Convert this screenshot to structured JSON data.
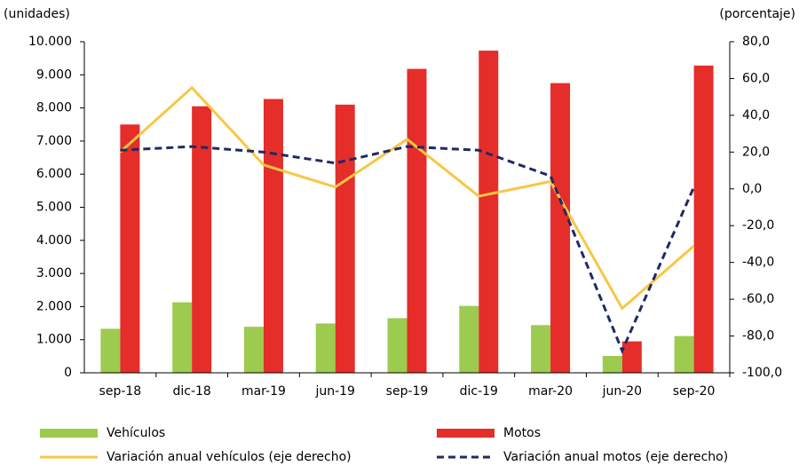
{
  "chart_data": {
    "type": "bar",
    "y_label": "(unidades)",
    "y2_label": "(porcentaje)",
    "categories": [
      "sep-18",
      "dic-18",
      "mar-19",
      "jun-19",
      "sep-19",
      "dic-19",
      "mar-20",
      "jun-20",
      "sep-20"
    ],
    "series": [
      {
        "name": "Vehículos",
        "type": "bar",
        "color": "#9dcb4f",
        "values": [
          1330,
          2130,
          1390,
          1490,
          1650,
          2020,
          1440,
          510,
          1110
        ]
      },
      {
        "name": "Motos",
        "type": "bar",
        "color": "#e52d2a",
        "values": [
          7500,
          8050,
          8270,
          8100,
          9180,
          9730,
          8750,
          950,
          9280
        ]
      },
      {
        "name": "Variación anual vehículos (eje derecho)",
        "type": "line",
        "axis": "y2",
        "color": "#f7c744",
        "dashed": false,
        "values": [
          20,
          55,
          13,
          1,
          27,
          -4,
          4,
          -65,
          -31
        ]
      },
      {
        "name": "Variación anual motos (eje derecho)",
        "type": "line",
        "axis": "y2",
        "color": "#1f2a66",
        "dashed": true,
        "values": [
          21,
          23,
          20,
          14,
          23,
          21,
          7,
          -88,
          1
        ]
      }
    ],
    "ylim": [
      0,
      10000
    ],
    "yticks": [
      0,
      {
        "value": 1000,
        "label": "1.000"
      },
      {
        "value": 2000,
        "label": "2.000"
      },
      {
        "value": 3000,
        "label": "3.000"
      },
      {
        "value": 4000,
        "label": "4.000"
      },
      {
        "value": 5000,
        "label": "5.000"
      },
      {
        "value": 6000,
        "label": "6.000"
      },
      {
        "value": 7000,
        "label": "7.000"
      },
      {
        "value": 8000,
        "label": "8.000"
      },
      {
        "value": 9000,
        "label": "9.000"
      },
      {
        "value": 10000,
        "label": "10.000"
      }
    ],
    "y2lim": [
      -100,
      80
    ],
    "y2ticks": [
      {
        "value": -100,
        "label": "-100,0"
      },
      {
        "value": -80,
        "label": "-80,0"
      },
      {
        "value": -60,
        "label": "-60,0"
      },
      {
        "value": -40,
        "label": "-40,0"
      },
      {
        "value": -20,
        "label": "-20,0"
      },
      {
        "value": 0,
        "label": "0,0"
      },
      {
        "value": 20,
        "label": "20,0"
      },
      {
        "value": 40,
        "label": "40,0"
      },
      {
        "value": 60,
        "label": "60,0"
      },
      {
        "value": 80,
        "label": "80,0"
      }
    ],
    "grid": false,
    "legend": "bottom"
  }
}
